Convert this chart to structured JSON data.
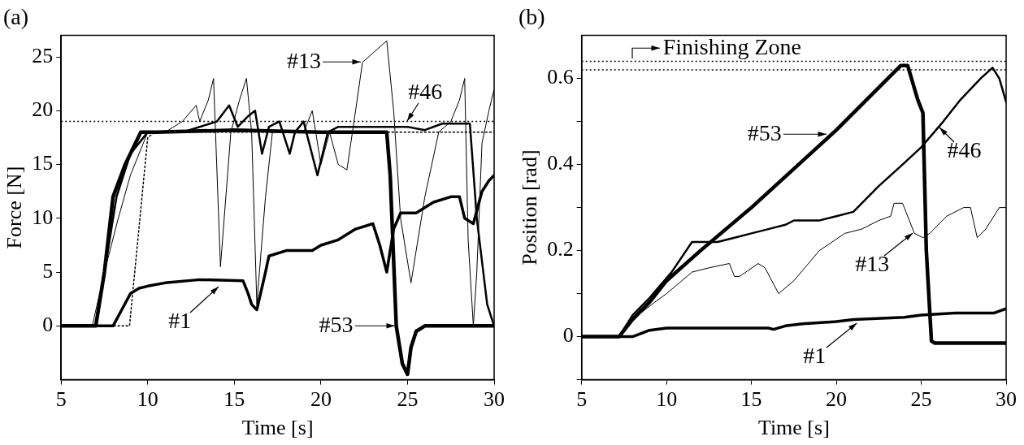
{
  "chart_data": [
    {
      "type": "line",
      "title": "(a)",
      "xlabel": "Time [s]",
      "ylabel": "Force [N]",
      "xlim": [
        5,
        30
      ],
      "xticks": [
        5,
        10,
        15,
        20,
        25,
        30
      ],
      "ylim": [
        -5,
        27
      ],
      "yticks": [
        0,
        5,
        10,
        15,
        20,
        25
      ],
      "grid": false,
      "legend": false,
      "marker": "none",
      "series": [
        {
          "color": "#000000",
          "x": [
            5,
            8,
            8.5,
            9,
            9.5,
            10,
            11,
            13,
            15.5,
            15.8,
            16,
            16.3,
            16.8,
            17,
            18,
            19.5,
            20,
            21,
            22,
            23,
            23.4,
            23.8,
            24.2,
            24.6,
            25.5,
            26.5,
            27.5,
            28,
            28.3,
            28.8,
            29.3,
            29.7,
            30
          ],
          "values": [
            0,
            0,
            1.5,
            3,
            3.5,
            3.7,
            4,
            4.3,
            4.2,
            3,
            2,
            1.5,
            5,
            6.5,
            7,
            7,
            7.5,
            8,
            9,
            9.5,
            7.5,
            5,
            9,
            10.5,
            10.5,
            11.5,
            12,
            12,
            10,
            9.5,
            12.5,
            13.5,
            14
          ]
        },
        {
          "color": "#000000",
          "x": [
            5,
            6.8,
            7.5,
            8.3,
            9,
            9.5,
            10,
            11,
            12,
            12.8,
            13,
            13.5,
            13.8,
            14.2,
            14.8,
            15.3,
            15.7,
            16,
            16.3,
            16.8,
            17.2,
            19,
            19.5,
            20,
            20.5,
            21,
            21.5,
            22,
            22.4,
            23.8,
            24.2,
            24.6,
            25.2,
            26,
            26.8,
            27.5,
            28,
            28.3,
            28.5,
            28.8,
            29,
            29.3,
            29.7,
            30
          ],
          "values": [
            0,
            0,
            5,
            10,
            14,
            16,
            18,
            18,
            19,
            20.5,
            19,
            21,
            23,
            5.5,
            18,
            21,
            23,
            18,
            2,
            12,
            18,
            18,
            20,
            15,
            18,
            15,
            14.5,
            20,
            24.5,
            26.5,
            20,
            10,
            4,
            12,
            18,
            19,
            21,
            23,
            8,
            0,
            5,
            17,
            20,
            22
          ]
        },
        {
          "color": "#000000",
          "x": [
            5,
            7,
            7.5,
            8.2,
            9,
            10,
            12,
            13,
            14,
            14.7,
            15.2,
            15.8,
            16.2,
            16.6,
            17,
            17.6,
            18.2,
            18.5,
            19,
            19.8,
            20.4,
            21,
            25,
            26,
            27,
            28.6,
            29,
            29.6,
            30
          ],
          "values": [
            0,
            0,
            5,
            12,
            16,
            18,
            18,
            18.5,
            19,
            20.5,
            18.5,
            19.5,
            20,
            16,
            18.5,
            19,
            16,
            18,
            19,
            14,
            18,
            18.5,
            18.5,
            18.2,
            18.8,
            18.8,
            10,
            2,
            0
          ]
        },
        {
          "color": "#000000",
          "x": [
            5,
            7,
            7.5,
            8,
            8.7,
            9.6,
            10.5,
            15,
            20,
            23.8,
            24,
            24.35,
            24.7,
            25,
            25.2,
            25.5,
            26,
            30
          ],
          "values": [
            0,
            0,
            5,
            12,
            15,
            18,
            18,
            18.2,
            18,
            18,
            14,
            0,
            -3.5,
            -4.5,
            -2,
            -0.5,
            0,
            0
          ]
        },
        {
          "color": "#000000",
          "line_style": "dotted",
          "x": [
            5,
            8.95,
            10,
            10.4,
            30
          ],
          "values": [
            0,
            0,
            17.5,
            18,
            18
          ]
        }
      ],
      "ref_lines": [
        {
          "axis": "y",
          "value": 19,
          "color": "#000000",
          "line_style": "dotted"
        }
      ],
      "annotations": [
        {
          "text": "#13",
          "x": 22.4,
          "y": 24.5
        },
        {
          "text": "#46",
          "x": 24.9,
          "y": 18.9
        },
        {
          "text": "#1",
          "x": 14.2,
          "y": 3.8
        },
        {
          "text": "#53",
          "x": 24.35,
          "y": 0
        }
      ]
    },
    {
      "type": "line",
      "title": "(b)",
      "xlabel": "Time [s]",
      "ylabel": "Position [rad]",
      "xlim": [
        5,
        30
      ],
      "xticks": [
        5,
        10,
        15,
        20,
        25,
        30
      ],
      "ylim": [
        -0.1,
        0.7
      ],
      "yticks": [
        {
          "value": -0.1,
          "label": null
        },
        0,
        {
          "value": 0.1,
          "label": null
        },
        0.2,
        {
          "value": 0.3,
          "label": null
        },
        0.4,
        {
          "value": 0.5,
          "label": null
        },
        0.6
      ],
      "grid": false,
      "legend": false,
      "marker": "none",
      "series": [
        {
          "color": "#000000",
          "x": [
            5,
            8,
            9,
            10,
            16,
            16.3,
            17,
            18,
            20,
            21,
            24,
            25,
            27,
            29.3,
            30
          ],
          "values": [
            0,
            0,
            0.015,
            0.02,
            0.02,
            0.017,
            0.025,
            0.03,
            0.035,
            0.04,
            0.045,
            0.05,
            0.055,
            0.055,
            0.065
          ]
        },
        {
          "color": "#000000",
          "x": [
            5,
            7.2,
            8,
            9.3,
            10,
            11.5,
            12.5,
            13.7,
            14,
            14.3,
            15.4,
            15.8,
            16.6,
            17.5,
            19,
            20.5,
            21.5,
            22.5,
            23.2,
            23.4,
            23.9,
            24.6,
            25.1,
            25.5,
            26.5,
            27.5,
            27.9,
            28.3,
            28.8,
            29.6,
            30
          ],
          "values": [
            0,
            0,
            0.04,
            0.08,
            0.1,
            0.15,
            0.16,
            0.17,
            0.14,
            0.14,
            0.17,
            0.16,
            0.1,
            0.13,
            0.2,
            0.24,
            0.25,
            0.27,
            0.28,
            0.31,
            0.31,
            0.24,
            0.23,
            0.24,
            0.28,
            0.3,
            0.3,
            0.23,
            0.25,
            0.3,
            0.3
          ]
        },
        {
          "color": "#000000",
          "x": [
            5,
            7.2,
            8,
            9,
            10.3,
            11.5,
            13,
            14,
            15,
            16,
            17,
            17.5,
            19,
            20,
            21,
            22.5,
            23.9,
            25,
            26.3,
            27.3,
            28.5,
            29.2,
            29.6,
            30
          ],
          "values": [
            0,
            0,
            0.05,
            0.09,
            0.15,
            0.22,
            0.22,
            0.23,
            0.24,
            0.25,
            0.26,
            0.27,
            0.27,
            0.28,
            0.29,
            0.35,
            0.4,
            0.44,
            0.5,
            0.55,
            0.6,
            0.625,
            0.6,
            0.545
          ]
        },
        {
          "color": "#000000",
          "x": [
            5,
            7.2,
            8,
            9,
            10,
            12,
            15,
            20,
            23.8,
            24.2,
            24.8,
            25.1,
            25.3,
            25.6,
            25.8,
            30
          ],
          "values": [
            0,
            0,
            0.04,
            0.08,
            0.13,
            0.2,
            0.3,
            0.48,
            0.63,
            0.63,
            0.55,
            0.52,
            0.2,
            -0.01,
            -0.015,
            -0.015
          ]
        }
      ],
      "ref_lines": [
        {
          "axis": "y",
          "value": 0.64,
          "label": "Finishing Zone",
          "color": "#000000",
          "line_style": "dotted"
        },
        {
          "axis": "y",
          "value": 0.62,
          "color": "#000000",
          "line_style": "dotted"
        }
      ],
      "annotations": [
        {
          "text": "#53",
          "x": 19.5,
          "y": 0.47
        },
        {
          "text": "#46",
          "x": 26,
          "y": 0.49
        },
        {
          "text": "#13",
          "x": 24.6,
          "y": 0.245
        },
        {
          "text": "#1",
          "x": 21.3,
          "y": 0.036
        }
      ]
    }
  ]
}
